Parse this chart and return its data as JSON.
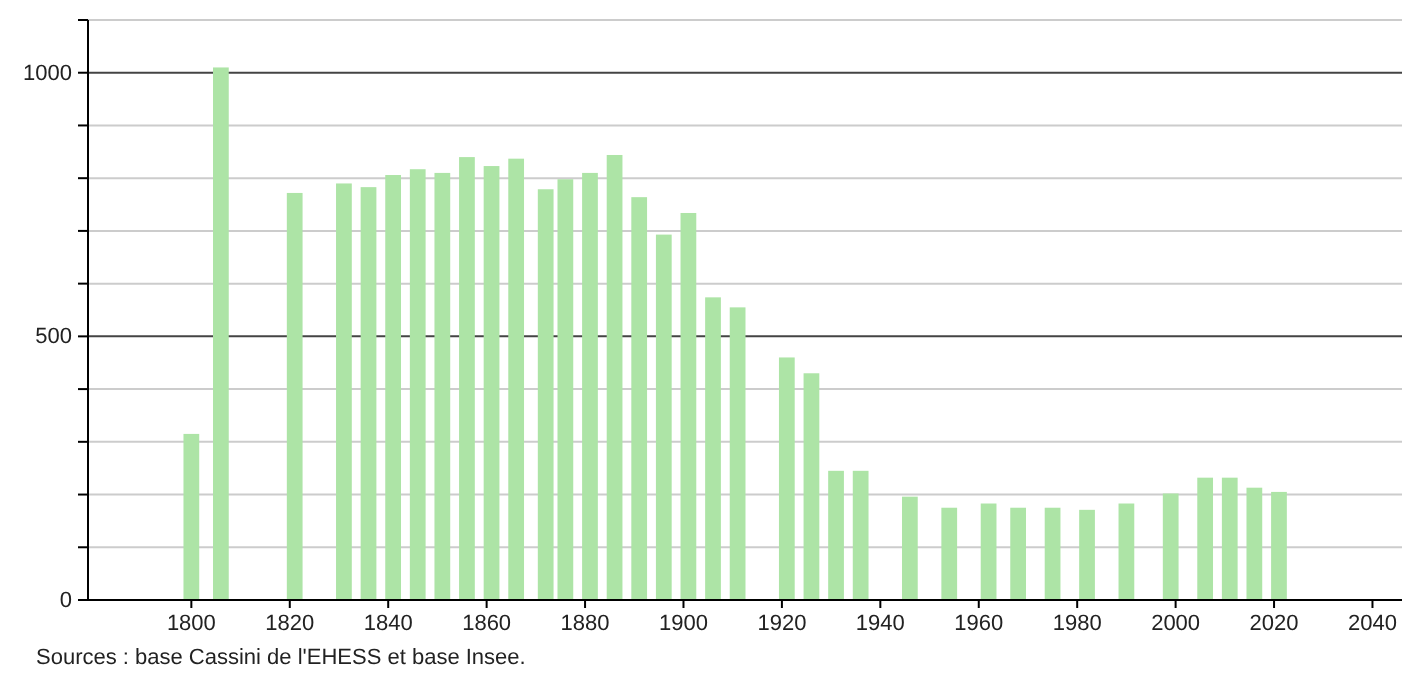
{
  "chart_data": {
    "type": "bar",
    "color": "#ade4a6",
    "x": [
      1800,
      1806,
      1821,
      1831,
      1836,
      1841,
      1846,
      1851,
      1856,
      1861,
      1866,
      1872,
      1876,
      1881,
      1886,
      1891,
      1896,
      1901,
      1906,
      1911,
      1921,
      1926,
      1931,
      1936,
      1946,
      1954,
      1962,
      1968,
      1975,
      1982,
      1990,
      1999,
      2006,
      2011,
      2016,
      2021
    ],
    "values": [
      315,
      1010,
      772,
      790,
      783,
      806,
      817,
      810,
      840,
      823,
      837,
      779,
      798,
      810,
      844,
      764,
      693,
      734,
      574,
      555,
      460,
      430,
      245,
      245,
      196,
      175,
      183,
      175,
      175,
      171,
      183,
      202,
      232,
      232,
      213,
      205
    ],
    "xlim": [
      1779,
      2046
    ],
    "xticks": [
      1800,
      1820,
      1840,
      1860,
      1880,
      1900,
      1920,
      1940,
      1960,
      1980,
      2000,
      2020,
      2040
    ],
    "ylim": [
      0,
      1100
    ],
    "yticks": [
      0,
      {
        "value": 100,
        "label": null
      },
      {
        "value": 200,
        "label": null
      },
      {
        "value": 300,
        "label": null
      },
      {
        "value": 400,
        "label": null
      },
      500,
      {
        "value": 600,
        "label": null
      },
      {
        "value": 700,
        "label": null
      },
      {
        "value": 800,
        "label": null
      },
      {
        "value": 900,
        "label": null
      },
      1000,
      {
        "value": 1100,
        "label": null
      }
    ],
    "grid": true,
    "annotations": [
      "Sources : base Cassini de l'EHESS et base Insee."
    ]
  }
}
